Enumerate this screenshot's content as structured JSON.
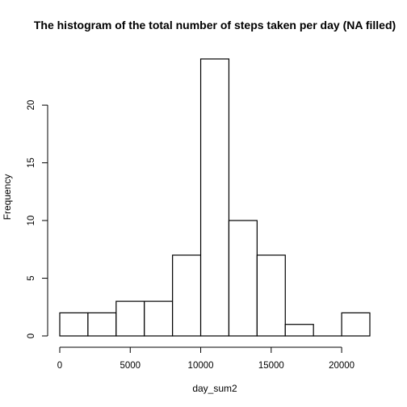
{
  "chart_data": {
    "type": "histogram",
    "title": "The histogram of the total number of steps taken per day (NA filled)",
    "xlabel": "day_sum2",
    "ylabel": "Frequency",
    "bins": [
      {
        "start": 0,
        "end": 2000,
        "count": 2
      },
      {
        "start": 2000,
        "end": 4000,
        "count": 2
      },
      {
        "start": 4000,
        "end": 6000,
        "count": 3
      },
      {
        "start": 6000,
        "end": 8000,
        "count": 3
      },
      {
        "start": 8000,
        "end": 10000,
        "count": 7
      },
      {
        "start": 10000,
        "end": 12000,
        "count": 24
      },
      {
        "start": 12000,
        "end": 14000,
        "count": 10
      },
      {
        "start": 14000,
        "end": 16000,
        "count": 7
      },
      {
        "start": 16000,
        "end": 18000,
        "count": 1
      },
      {
        "start": 18000,
        "end": 20000,
        "count": 0
      },
      {
        "start": 20000,
        "end": 22000,
        "count": 2
      }
    ],
    "xlim": [
      0,
      22000
    ],
    "ylim": [
      0,
      24
    ],
    "x_ticks": [
      0,
      5000,
      10000,
      15000,
      20000
    ],
    "y_ticks": [
      0,
      5,
      10,
      15,
      20
    ],
    "grid": false,
    "bar_fill": "#ffffff",
    "bar_stroke": "#000000"
  }
}
